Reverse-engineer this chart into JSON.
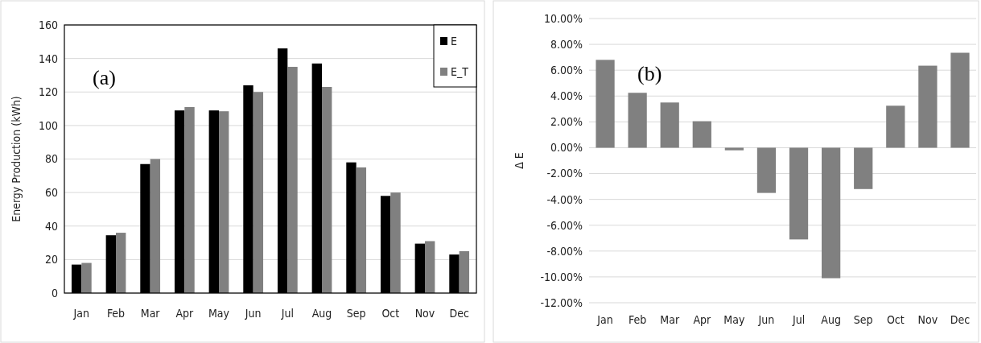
{
  "chart_data": [
    {
      "type": "bar",
      "ylabel": "Energy Production (kWh)",
      "categories": [
        "Jan",
        "Feb",
        "Mar",
        "Apr",
        "May",
        "Jun",
        "Jul",
        "Aug",
        "Sep",
        "Oct",
        "Nov",
        "Dec"
      ],
      "series": [
        {
          "name": "E",
          "color": "#000000",
          "values": [
            17,
            34.5,
            77,
            109,
            109,
            124,
            146,
            137,
            78,
            58,
            29.5,
            23
          ]
        },
        {
          "name": "E_T",
          "color": "#808080",
          "values": [
            18,
            36,
            80,
            111,
            108.5,
            120,
            135,
            123,
            75,
            60,
            31,
            25
          ]
        }
      ],
      "ylim": [
        0,
        160
      ],
      "yticks": [
        0,
        20,
        40,
        60,
        80,
        100,
        120,
        140,
        160
      ],
      "grid": "y",
      "legend": "top right",
      "annotations": [
        "(a)"
      ]
    },
    {
      "type": "bar",
      "ylabel": "Δ E",
      "categories": [
        "Jan",
        "Feb",
        "Mar",
        "Apr",
        "May",
        "Jun",
        "Jul",
        "Aug",
        "Sep",
        "Oct",
        "Nov",
        "Dec"
      ],
      "series": [
        {
          "color": "#808080",
          "values": [
            6.8,
            4.25,
            3.5,
            2.05,
            -0.2,
            -3.5,
            -7.1,
            -10.1,
            -3.2,
            3.25,
            6.35,
            7.35
          ]
        }
      ],
      "ylim": [
        -12,
        10
      ],
      "yticks": [
        {
          "value": -12,
          "label": "-12.00%"
        },
        {
          "value": -10,
          "label": "-10.00%"
        },
        {
          "value": -8,
          "label": "-8.00%"
        },
        {
          "value": -6,
          "label": "-6.00%"
        },
        {
          "value": -4,
          "label": "-4.00%"
        },
        {
          "value": -2,
          "label": "-2.00%"
        },
        {
          "value": 0,
          "label": "0.00%"
        },
        {
          "value": 2,
          "label": "2.00%"
        },
        {
          "value": 4,
          "label": "4.00%"
        },
        {
          "value": 6,
          "label": "6.00%"
        },
        {
          "value": 8,
          "label": "8.00%"
        },
        {
          "value": 10,
          "label": "10.00%"
        }
      ],
      "grid": "y",
      "annotations": [
        "(b)"
      ]
    }
  ]
}
